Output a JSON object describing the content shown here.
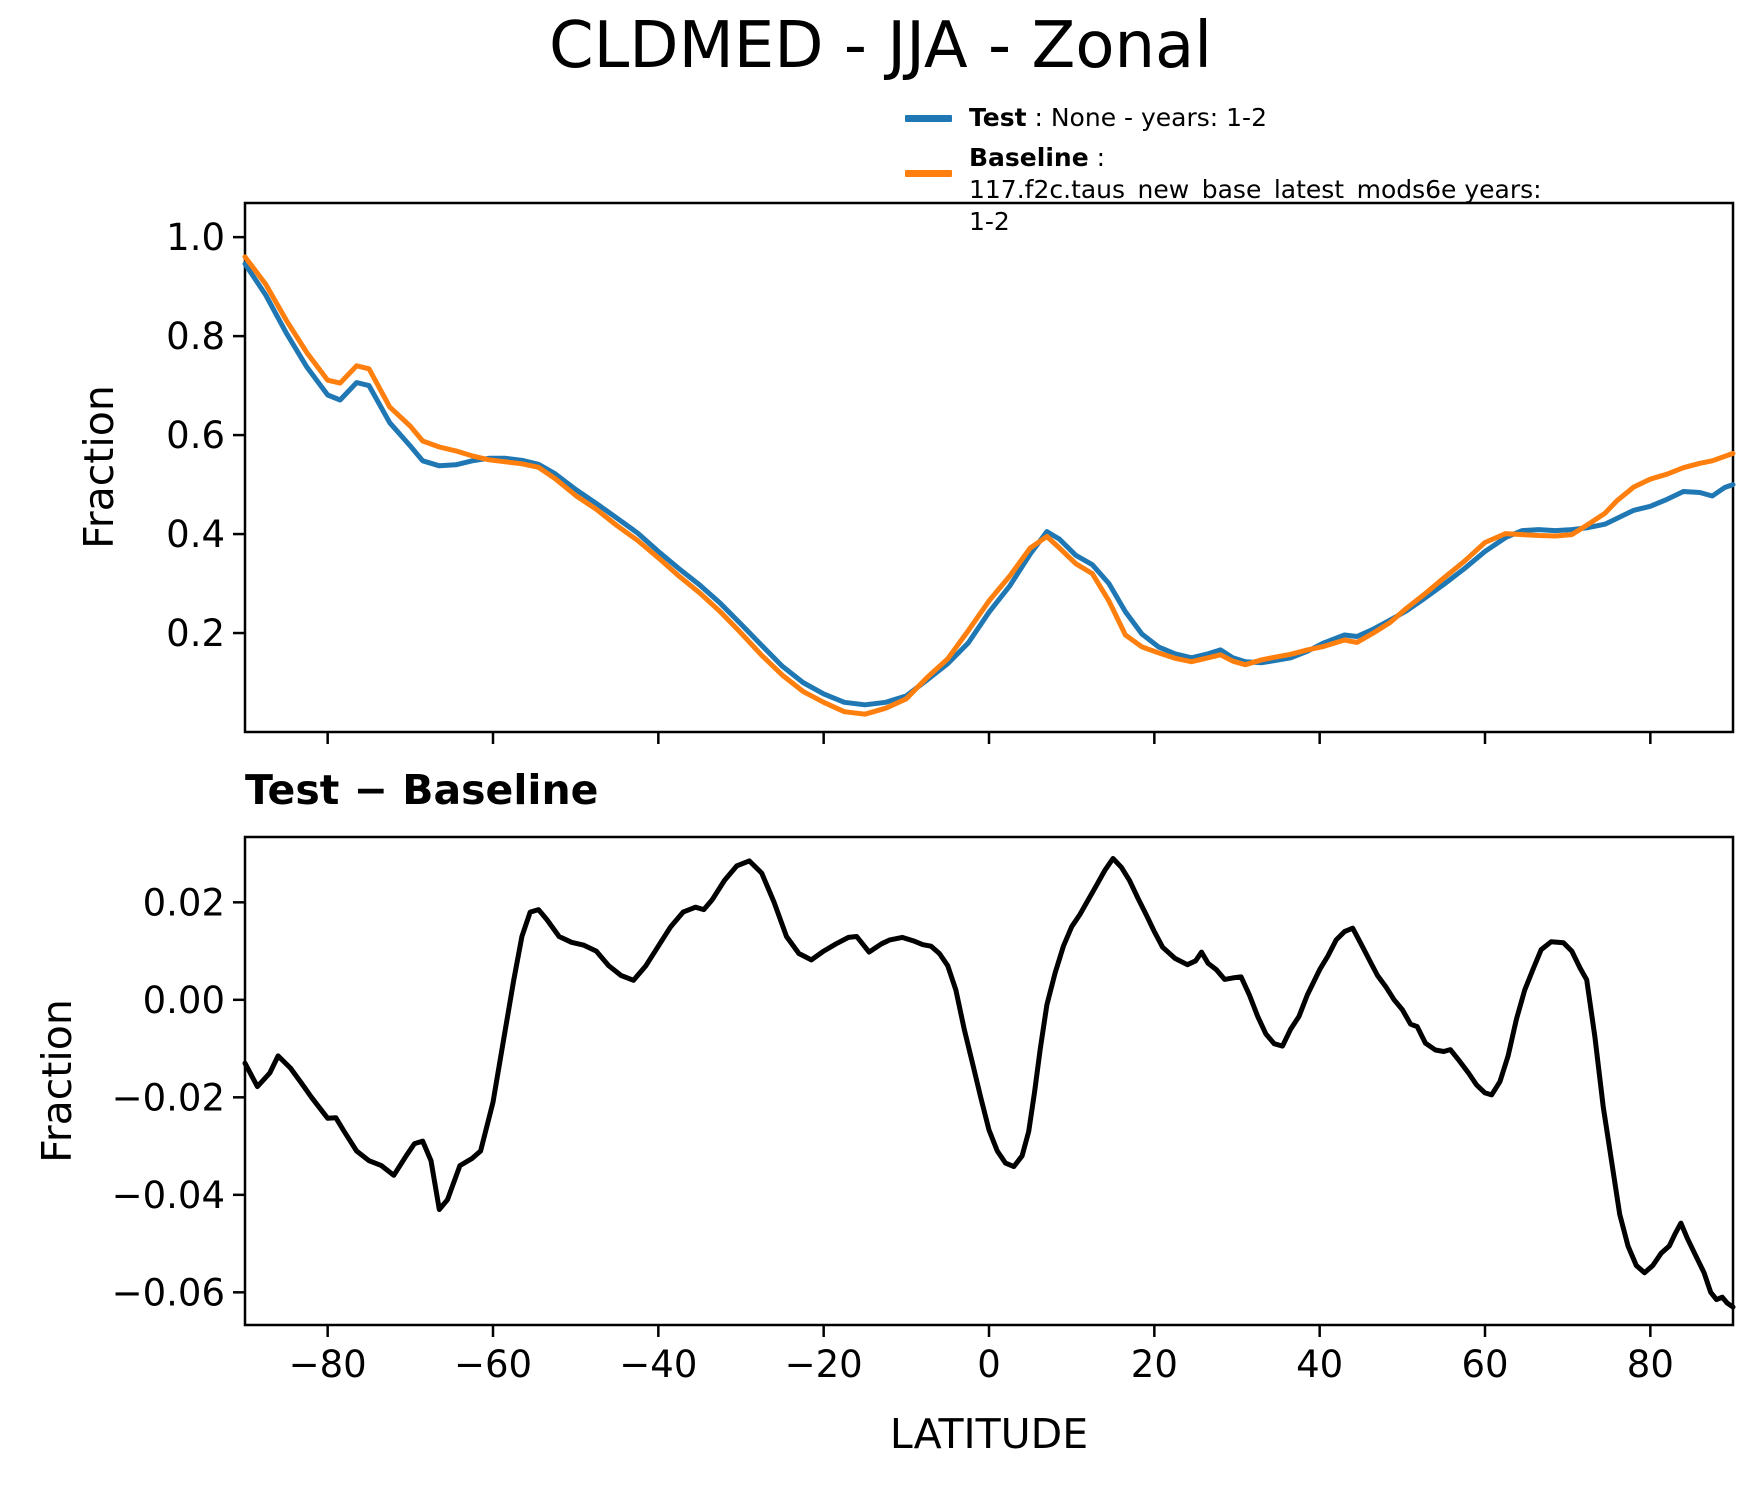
{
  "page": {
    "background": "#ffffff"
  },
  "title": {
    "text": "CLDMED - JJA - Zonal"
  },
  "legend": {
    "items": [
      {
        "label_bold": "Test",
        "label_rest": " : None - years: 1-2",
        "color": "#1f77b4"
      },
      {
        "label_bold": "Baseline",
        "label_rest": " : 117.f2c.taus_new_base_latest_mods6e years: 1-2",
        "color": "#ff7f0e"
      }
    ]
  },
  "chart_data": [
    {
      "type": "line",
      "title": "CLDMED - JJA - Zonal",
      "xlabel": "",
      "ylabel": "Fraction",
      "xlim": [
        -90,
        90
      ],
      "ylim": [
        0.0,
        1.069
      ],
      "grid": false,
      "legend_position": "outside upper right",
      "xticks": {
        "values": [
          -80,
          -60,
          -40,
          -20,
          0,
          20,
          40,
          60,
          80
        ],
        "labels": [
          "−80",
          "−60",
          "−40",
          "−20",
          "0",
          "20",
          "40",
          "60",
          "80"
        ],
        "show_labels": false
      },
      "yticks": {
        "values": [
          1.0,
          0.8,
          0.6,
          0.4,
          0.2
        ],
        "labels": [
          "1.0",
          "0.8",
          "0.6",
          "0.4",
          "0.2"
        ]
      },
      "x": [
        -90,
        -87.5,
        -85,
        -82.5,
        -80,
        -78.5,
        -76.5,
        -75,
        -72.5,
        -70,
        -68.5,
        -66.5,
        -64.5,
        -62.5,
        -60.5,
        -58.5,
        -56.5,
        -54.5,
        -52.5,
        -50,
        -47.5,
        -45,
        -42.5,
        -40,
        -37.5,
        -35,
        -32.5,
        -30,
        -27.5,
        -25,
        -22.5,
        -20,
        -17.5,
        -15,
        -12.5,
        -10,
        -7.5,
        -5,
        -2.5,
        0,
        2.5,
        5,
        7,
        8.5,
        10.5,
        12.5,
        14.5,
        16.5,
        18.5,
        20.5,
        22.5,
        24.5,
        26.5,
        28,
        29.5,
        31,
        33,
        34.5,
        36.5,
        38.5,
        40.5,
        43,
        44.5,
        46.5,
        48.5,
        50.5,
        52.5,
        55,
        57.5,
        60,
        62.5,
        64.5,
        66.5,
        68.5,
        70.5,
        72.5,
        74.5,
        76,
        78,
        80,
        82,
        84,
        86,
        87.5,
        89,
        90
      ],
      "series": [
        {
          "name": "Test : None - years: 1-2",
          "color": "#1f77b4",
          "values": [
            0.946,
            0.883,
            0.806,
            0.737,
            0.681,
            0.671,
            0.706,
            0.7,
            0.625,
            0.578,
            0.548,
            0.538,
            0.54,
            0.548,
            0.553,
            0.553,
            0.549,
            0.541,
            0.522,
            0.49,
            0.462,
            0.432,
            0.402,
            0.365,
            0.33,
            0.297,
            0.26,
            0.218,
            0.175,
            0.133,
            0.1,
            0.077,
            0.06,
            0.055,
            0.06,
            0.073,
            0.105,
            0.138,
            0.18,
            0.242,
            0.295,
            0.36,
            0.405,
            0.39,
            0.357,
            0.338,
            0.3,
            0.243,
            0.198,
            0.172,
            0.158,
            0.15,
            0.158,
            0.166,
            0.15,
            0.142,
            0.14,
            0.144,
            0.15,
            0.163,
            0.18,
            0.196,
            0.193,
            0.208,
            0.226,
            0.245,
            0.268,
            0.298,
            0.33,
            0.365,
            0.393,
            0.407,
            0.409,
            0.407,
            0.409,
            0.413,
            0.42,
            0.432,
            0.448,
            0.456,
            0.47,
            0.486,
            0.484,
            0.477,
            0.494,
            0.5
          ]
        },
        {
          "name": "Baseline : 117.f2c.taus_new_base_latest_mods6e years: 1-2",
          "color": "#ff7f0e",
          "values": [
            0.96,
            0.905,
            0.832,
            0.766,
            0.711,
            0.705,
            0.74,
            0.734,
            0.657,
            0.618,
            0.588,
            0.576,
            0.568,
            0.558,
            0.55,
            0.546,
            0.542,
            0.535,
            0.512,
            0.478,
            0.45,
            0.417,
            0.387,
            0.352,
            0.315,
            0.281,
            0.243,
            0.2,
            0.155,
            0.115,
            0.082,
            0.06,
            0.041,
            0.036,
            0.048,
            0.067,
            0.11,
            0.148,
            0.205,
            0.265,
            0.315,
            0.372,
            0.395,
            0.372,
            0.34,
            0.32,
            0.265,
            0.196,
            0.172,
            0.16,
            0.149,
            0.142,
            0.15,
            0.156,
            0.143,
            0.136,
            0.146,
            0.151,
            0.157,
            0.166,
            0.173,
            0.186,
            0.181,
            0.2,
            0.221,
            0.25,
            0.276,
            0.311,
            0.345,
            0.383,
            0.401,
            0.399,
            0.397,
            0.396,
            0.399,
            0.42,
            0.442,
            0.468,
            0.495,
            0.511,
            0.521,
            0.534,
            0.543,
            0.548,
            0.557,
            0.563
          ]
        }
      ]
    },
    {
      "type": "line",
      "title": "Test − Baseline",
      "xlabel": "LATITUDE",
      "ylabel": "Fraction",
      "xlim": [
        -90,
        90
      ],
      "ylim": [
        -0.0667,
        0.0334
      ],
      "grid": false,
      "xticks": {
        "values": [
          -80,
          -60,
          -40,
          -20,
          0,
          20,
          40,
          60,
          80
        ],
        "labels": [
          "−80",
          "−60",
          "−40",
          "−20",
          "0",
          "20",
          "40",
          "60",
          "80"
        ],
        "show_labels": true
      },
      "yticks": {
        "values": [
          0.02,
          0.0,
          -0.02,
          -0.04,
          -0.06
        ],
        "labels": [
          "0.02",
          "0.00",
          "−0.02",
          "−0.04",
          "−0.06"
        ]
      },
      "x": [
        -90,
        -88.5,
        -87,
        -86,
        -84.5,
        -83,
        -82,
        -80,
        -79,
        -78,
        -76.5,
        -75,
        -73.5,
        -72,
        -70.5,
        -69.5,
        -68.5,
        -67.5,
        -66.5,
        -65.5,
        -64,
        -62.5,
        -61.5,
        -60,
        -58.5,
        -57.5,
        -56.5,
        -55.5,
        -54.5,
        -53.5,
        -52,
        -50.5,
        -49,
        -47.5,
        -46,
        -44.5,
        -43,
        -41.5,
        -40,
        -38.5,
        -37,
        -35.5,
        -34.5,
        -33.5,
        -32,
        -30.5,
        -29,
        -27.5,
        -26,
        -24.5,
        -23,
        -21.5,
        -20,
        -18.5,
        -17,
        -16,
        -14.5,
        -13,
        -12,
        -10.5,
        -9,
        -8,
        -7,
        -6,
        -5,
        -4,
        -3,
        -2,
        -1,
        0,
        1,
        2,
        3,
        4,
        4.8,
        5.5,
        6.2,
        7,
        8,
        9,
        10,
        11,
        12,
        13,
        14,
        15,
        16,
        17,
        18,
        19,
        20,
        21,
        22.5,
        24,
        25,
        25.7,
        26.5,
        27.5,
        28.5,
        29.5,
        30.5,
        31.5,
        32.5,
        33.5,
        34.5,
        35.5,
        36.5,
        37.5,
        38.5,
        40,
        41,
        42,
        43,
        44,
        45,
        46,
        47,
        48,
        49,
        50,
        51,
        51.8,
        52.8,
        54,
        55,
        55.8,
        56.8,
        58,
        59,
        60,
        60.8,
        61.8,
        62.8,
        63.8,
        64.8,
        65.8,
        66.8,
        68,
        69.5,
        70.5,
        71.5,
        72.3,
        73.3,
        74.3,
        75.3,
        76.3,
        77.3,
        78.3,
        79.3,
        80.3,
        81.3,
        82.3,
        83,
        83.7,
        84.5,
        85.5,
        86.5,
        87.3,
        88,
        88.7,
        89.3,
        90
      ],
      "series": [
        {
          "name": "Test − Baseline",
          "color": "#000000",
          "values": [
            -0.013,
            -0.0178,
            -0.015,
            -0.0115,
            -0.014,
            -0.0175,
            -0.0199,
            -0.0243,
            -0.0242,
            -0.027,
            -0.031,
            -0.033,
            -0.034,
            -0.036,
            -0.032,
            -0.0295,
            -0.029,
            -0.033,
            -0.043,
            -0.041,
            -0.034,
            -0.0325,
            -0.031,
            -0.021,
            -0.006,
            0.004,
            0.013,
            0.018,
            0.0185,
            0.0165,
            0.013,
            0.0118,
            0.0112,
            0.01,
            0.007,
            0.005,
            0.004,
            0.007,
            0.011,
            0.015,
            0.018,
            0.019,
            0.0185,
            0.0205,
            0.0245,
            0.0275,
            0.0285,
            0.026,
            0.02,
            0.013,
            0.0095,
            0.0082,
            0.01,
            0.0115,
            0.0128,
            0.013,
            0.0098,
            0.0115,
            0.0123,
            0.0128,
            0.012,
            0.0113,
            0.011,
            0.0095,
            0.007,
            0.002,
            -0.006,
            -0.013,
            -0.02,
            -0.0267,
            -0.031,
            -0.0335,
            -0.0342,
            -0.032,
            -0.027,
            -0.019,
            -0.01,
            -0.001,
            0.0055,
            0.011,
            0.015,
            0.0175,
            0.0205,
            0.0235,
            0.0265,
            0.029,
            0.0272,
            0.0245,
            0.0209,
            0.0175,
            0.014,
            0.0108,
            0.0085,
            0.0072,
            0.008,
            0.0098,
            0.0075,
            0.0062,
            0.0042,
            0.0045,
            0.0047,
            0.001,
            -0.0034,
            -0.007,
            -0.009,
            -0.0095,
            -0.006,
            -0.0034,
            0.001,
            0.0062,
            0.009,
            0.0123,
            0.014,
            0.0147,
            0.0115,
            0.0082,
            0.005,
            0.0027,
            0.0,
            -0.002,
            -0.005,
            -0.0055,
            -0.0089,
            -0.0103,
            -0.0106,
            -0.0102,
            -0.0123,
            -0.015,
            -0.0175,
            -0.0191,
            -0.0195,
            -0.0168,
            -0.0115,
            -0.004,
            0.002,
            0.0062,
            0.0103,
            0.0119,
            0.0117,
            0.01,
            0.0065,
            0.0041,
            -0.0076,
            -0.0219,
            -0.033,
            -0.044,
            -0.0505,
            -0.0545,
            -0.056,
            -0.0545,
            -0.052,
            -0.0505,
            -0.048,
            -0.0458,
            -0.049,
            -0.0525,
            -0.056,
            -0.06,
            -0.0615,
            -0.061,
            -0.0622,
            -0.063
          ]
        }
      ]
    }
  ]
}
